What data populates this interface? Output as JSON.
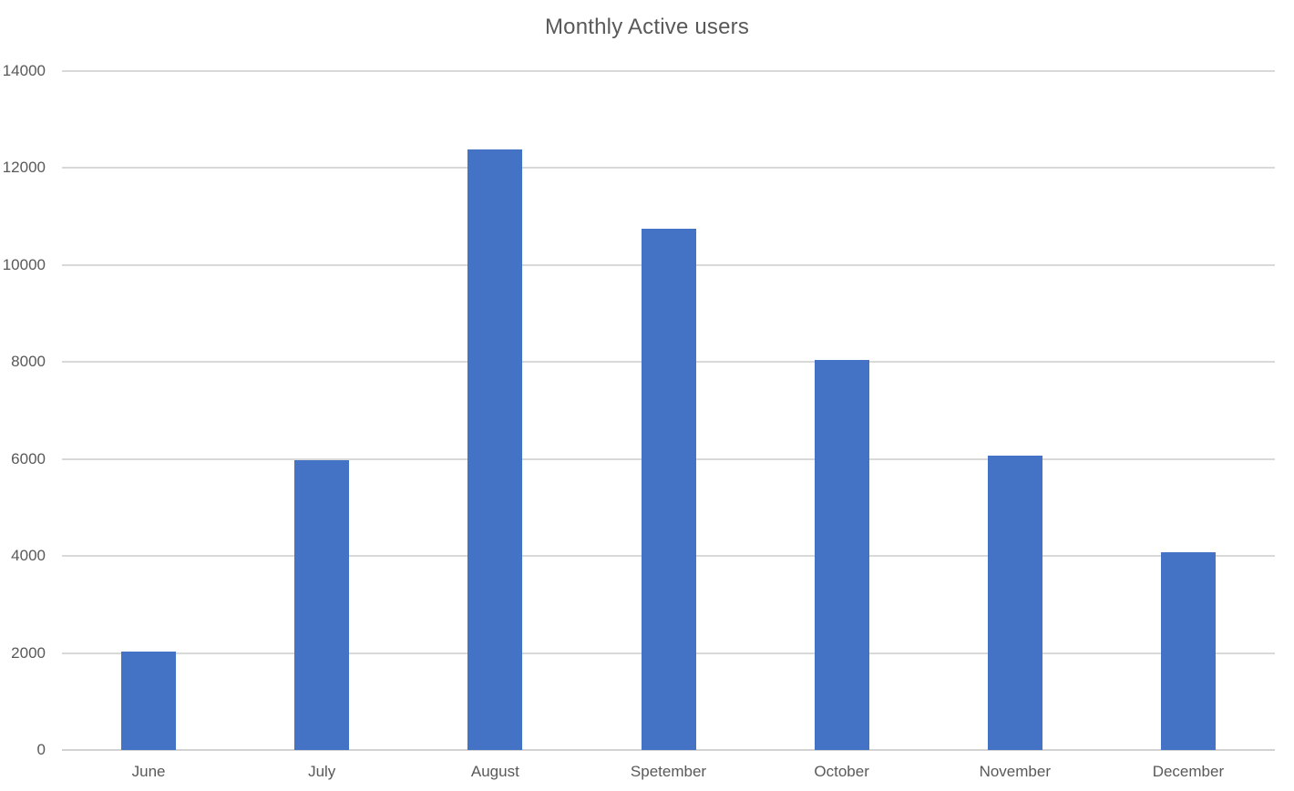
{
  "chart_data": {
    "type": "bar",
    "title": "Monthly Active users",
    "categories": [
      "June",
      "July",
      "August",
      "Spetember",
      "October",
      "November",
      "December"
    ],
    "values": [
      2030,
      5970,
      12390,
      10740,
      8040,
      6070,
      4080
    ],
    "xlabel": "",
    "ylabel": "",
    "ylim": [
      0,
      14000
    ],
    "ytick_interval": 2000,
    "yticks": [
      0,
      2000,
      4000,
      6000,
      8000,
      10000,
      12000,
      14000
    ],
    "grid": "horizontal-only",
    "legend": "none",
    "colors": {
      "bar": "#4472C4",
      "gridline": "#D9D9D9",
      "axis_line": "#D2D2D2",
      "text": "#595959",
      "background": "#FFFFFF"
    }
  }
}
